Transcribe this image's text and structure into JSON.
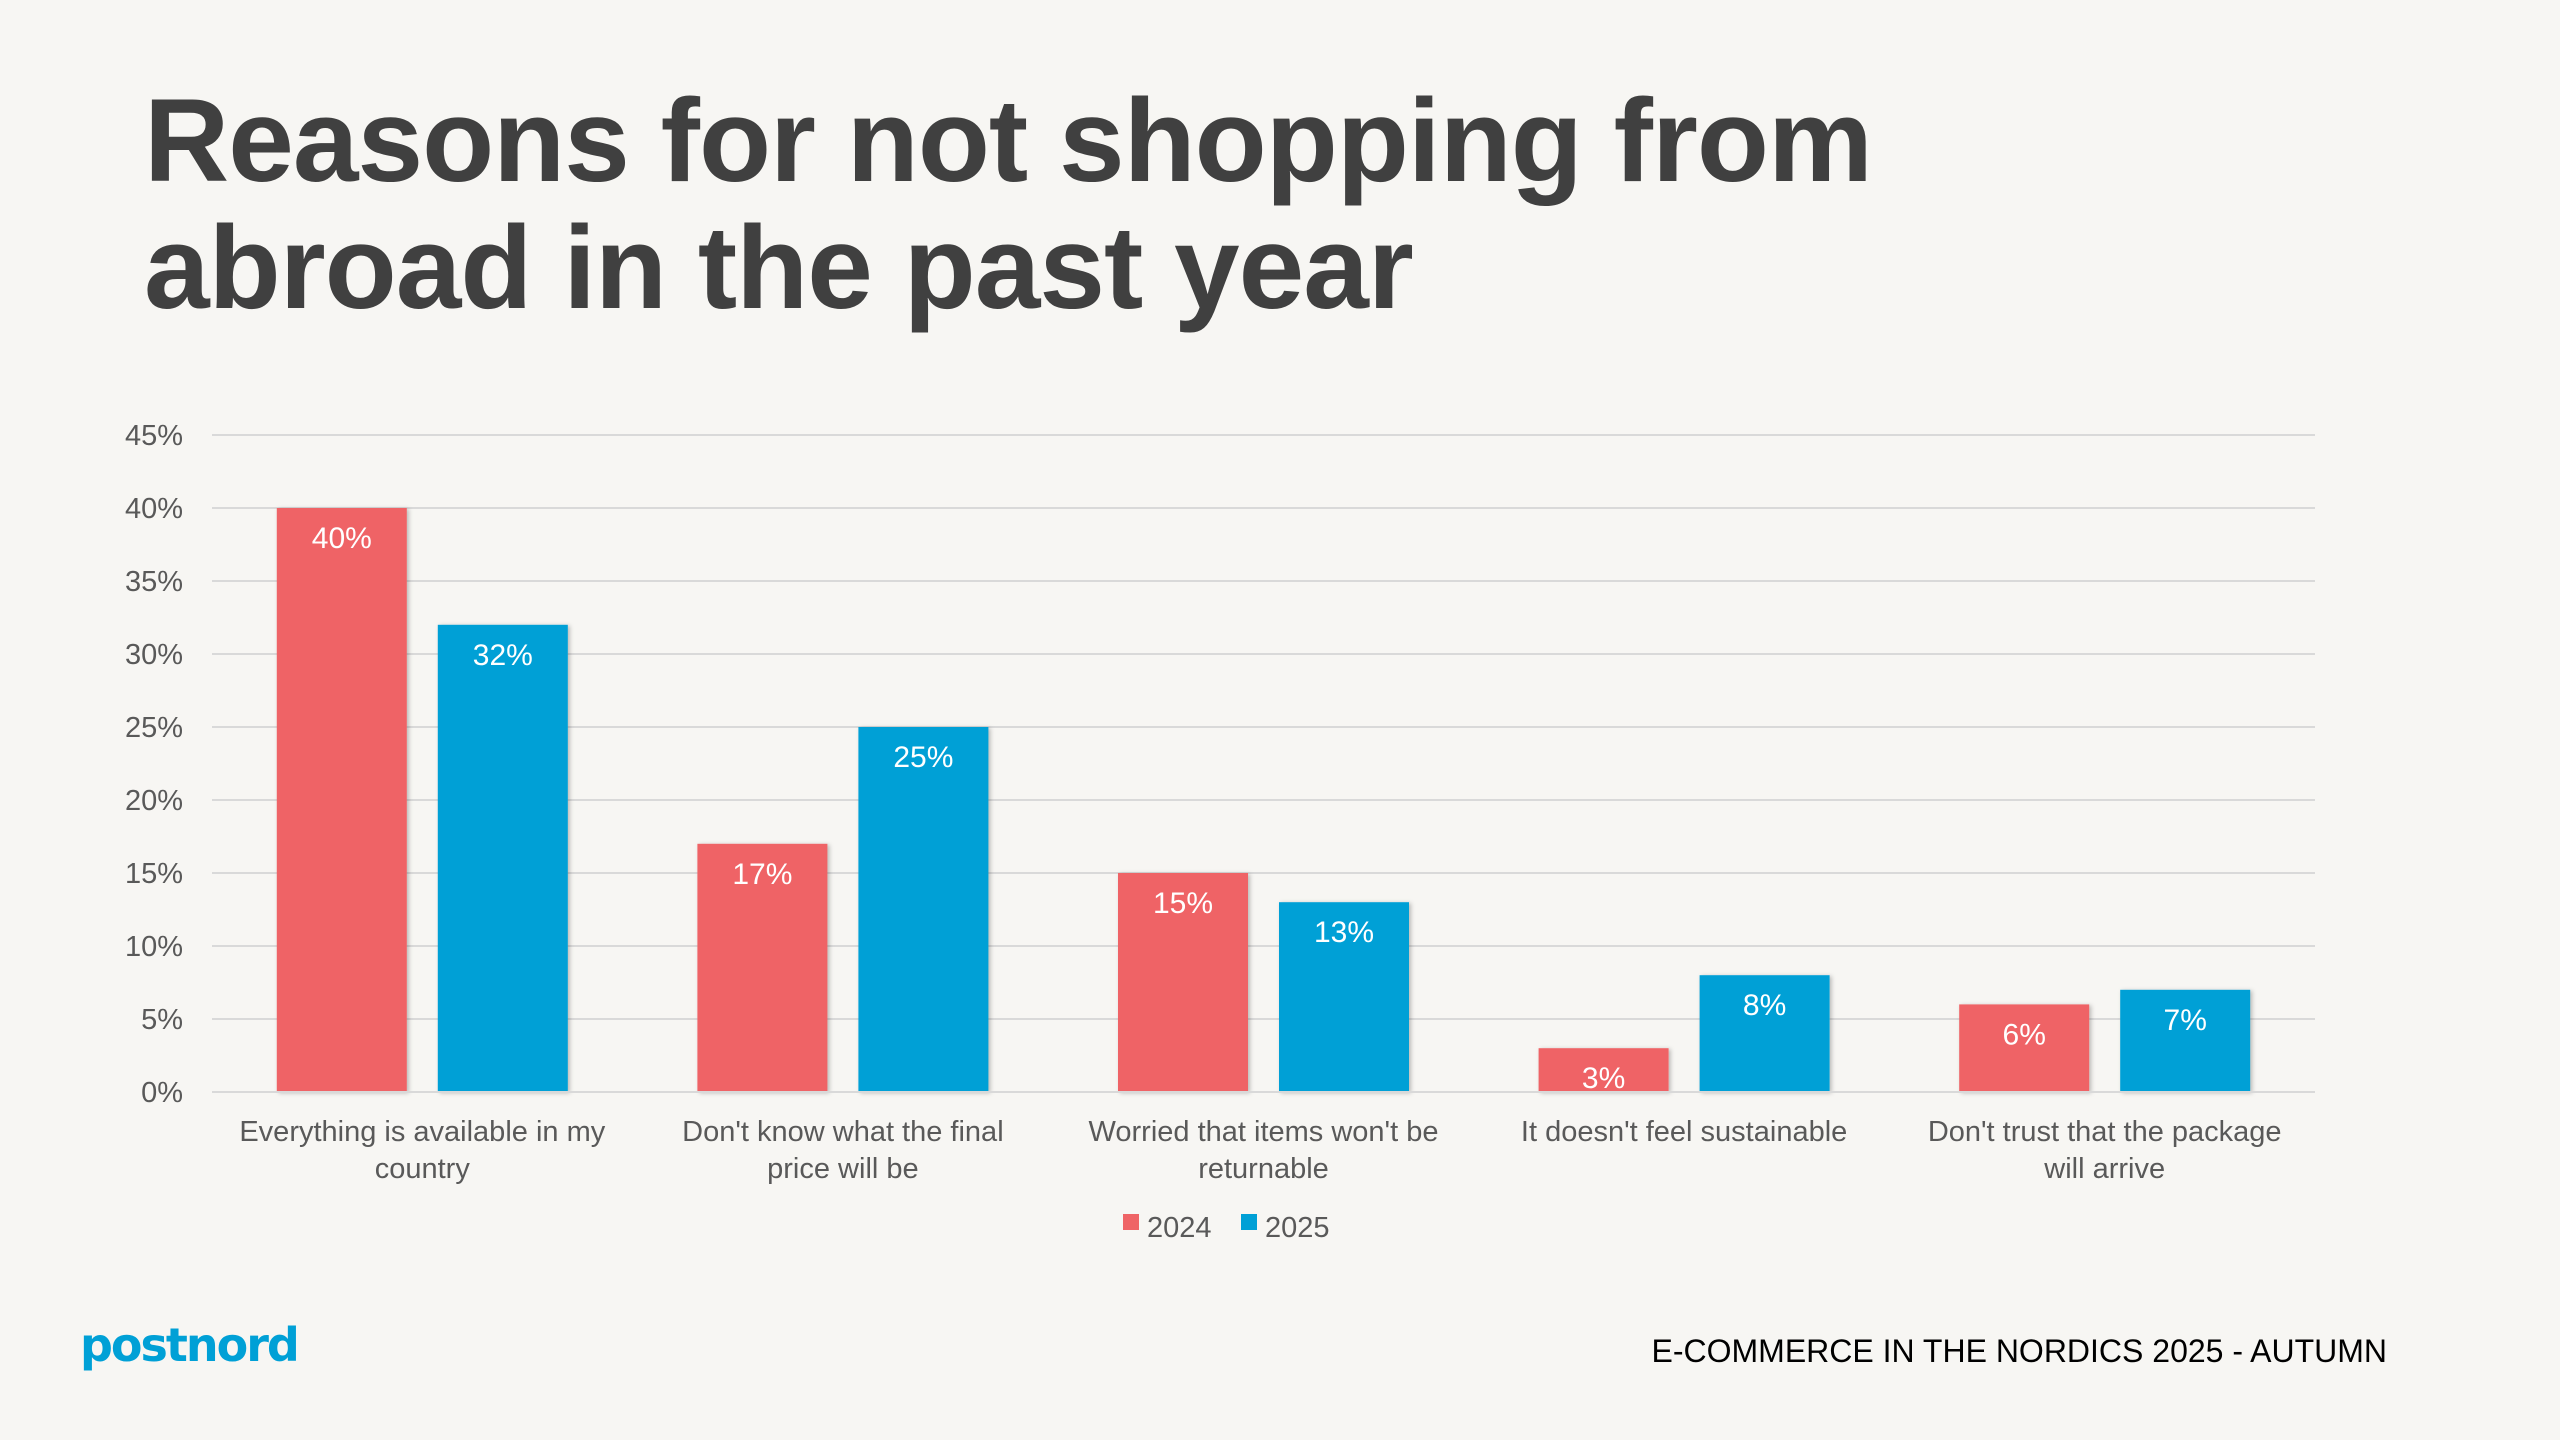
{
  "title_lines": [
    "Reasons for not shopping from",
    "abroad in the past year"
  ],
  "footer": "E-COMMERCE IN THE NORDICS 2025 - AUTUMN",
  "logo": "postnord",
  "colors": {
    "2024": "#EF6466",
    "2025": "#00A0D6",
    "background": "#F7F6F3",
    "grid": "#D9D9D9"
  },
  "chart_data": {
    "type": "bar",
    "categories": [
      [
        "Everything is available in my",
        "country"
      ],
      [
        "Don't know what the final",
        "price will be"
      ],
      [
        "Worried that items won't be",
        "returnable"
      ],
      [
        "It doesn't feel sustainable"
      ],
      [
        "Don't trust that the package",
        "will arrive"
      ]
    ],
    "series": [
      {
        "name": "2024",
        "values": [
          40,
          17,
          15,
          3,
          6
        ],
        "labels": [
          "40%",
          "17%",
          "15%",
          "3%",
          "6%"
        ]
      },
      {
        "name": "2025",
        "values": [
          32,
          25,
          13,
          8,
          7
        ],
        "labels": [
          "32%",
          "25%",
          "13%",
          "8%",
          "7%"
        ]
      }
    ],
    "yticks": [
      "0%",
      "5%",
      "10%",
      "15%",
      "20%",
      "25%",
      "30%",
      "35%",
      "40%",
      "45%"
    ],
    "ylim": [
      0,
      45
    ],
    "grid": true,
    "legend": "bottom"
  }
}
